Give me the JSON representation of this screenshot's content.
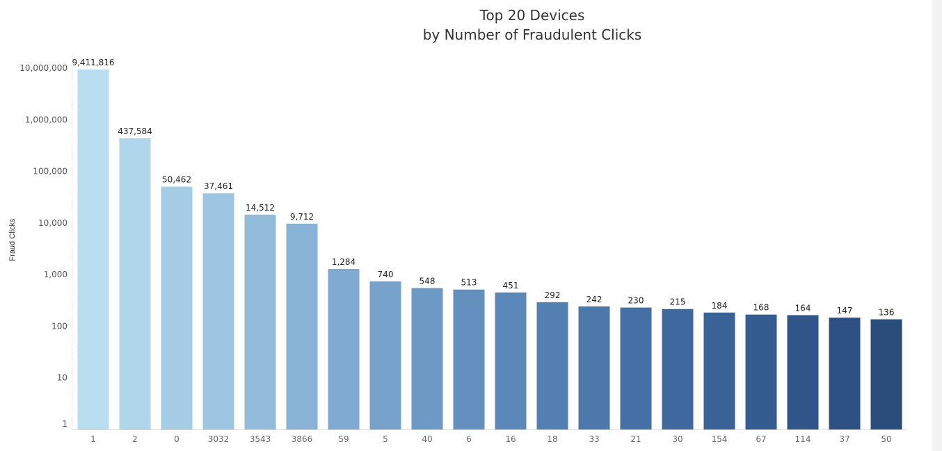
{
  "chart_data": {
    "type": "bar",
    "title": "Top 20 Devices",
    "subtitle": "by Number of Fraudulent Clicks",
    "ylabel": "Fraud Clicks",
    "xlabel": "",
    "yscale": "log",
    "ylim": [
      1,
      10000000
    ],
    "y_ticks": [
      "1",
      "10",
      "100",
      "1,000",
      "10,000",
      "100,000",
      "1,000,000",
      "10,000,000"
    ],
    "grid": false,
    "categories": [
      "1",
      "2",
      "0",
      "3032",
      "3543",
      "3866",
      "59",
      "5",
      "40",
      "6",
      "16",
      "18",
      "33",
      "21",
      "30",
      "154",
      "67",
      "114",
      "37",
      "50"
    ],
    "values": [
      9411816,
      437584,
      50462,
      37461,
      14512,
      9712,
      1284,
      740,
      548,
      513,
      451,
      292,
      242,
      230,
      215,
      184,
      168,
      164,
      147,
      136
    ],
    "labels": [
      "9,411,816",
      "437,584",
      "50,462",
      "37,461",
      "14,512",
      "9,712",
      "1,284",
      "740",
      "548",
      "513",
      "451",
      "292",
      "242",
      "230",
      "215",
      "184",
      "168",
      "164",
      "147",
      "136"
    ],
    "colors": [
      "#b9def0",
      "#b0d6eb",
      "#a6cde6",
      "#9dc5e1",
      "#93bcdb",
      "#89b3d6",
      "#80aad1",
      "#76a2cb",
      "#6d99c5",
      "#6490bf",
      "#5b88b9",
      "#5380b3",
      "#4c78ac",
      "#4570a5",
      "#3f699e",
      "#396297",
      "#345c90",
      "#305689",
      "#2c5182",
      "#294c7b"
    ]
  }
}
